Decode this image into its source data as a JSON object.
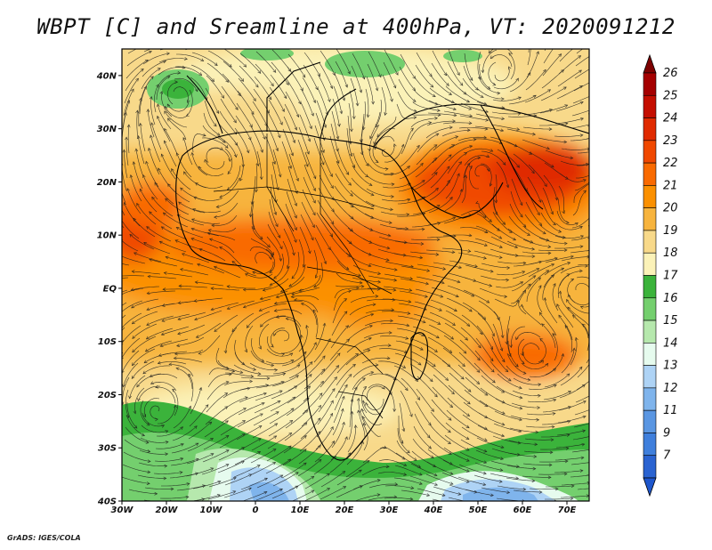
{
  "title": "WBPT [C] and Sreamline at 400hPa, VT: 2020091212",
  "credit": "GrADS: IGES/COLA",
  "map": {
    "lon_range": [
      -30,
      75
    ],
    "lat_range": [
      -40,
      45
    ],
    "lat_ticks": [
      {
        "value": 40,
        "label": "40N"
      },
      {
        "value": 30,
        "label": "30N"
      },
      {
        "value": 20,
        "label": "20N"
      },
      {
        "value": 10,
        "label": "10N"
      },
      {
        "value": 0,
        "label": "EQ"
      },
      {
        "value": -10,
        "label": "10S"
      },
      {
        "value": -20,
        "label": "20S"
      },
      {
        "value": -30,
        "label": "30S"
      },
      {
        "value": -40,
        "label": "40S"
      }
    ],
    "lon_ticks": [
      {
        "value": -30,
        "label": "30W"
      },
      {
        "value": -20,
        "label": "20W"
      },
      {
        "value": -10,
        "label": "10W"
      },
      {
        "value": 0,
        "label": "0"
      },
      {
        "value": 10,
        "label": "10E"
      },
      {
        "value": 20,
        "label": "20E"
      },
      {
        "value": 30,
        "label": "30E"
      },
      {
        "value": 40,
        "label": "40E"
      },
      {
        "value": 50,
        "label": "50E"
      },
      {
        "value": 60,
        "label": "60E"
      },
      {
        "value": 70,
        "label": "70E"
      }
    ]
  },
  "colorbar": {
    "levels": [
      {
        "label": "26",
        "color": "#a50000"
      },
      {
        "label": "25",
        "color": "#c40e00"
      },
      {
        "label": "24",
        "color": "#e02a00"
      },
      {
        "label": "23",
        "color": "#f04800"
      },
      {
        "label": "22",
        "color": "#f96a00"
      },
      {
        "label": "21",
        "color": "#fb9000"
      },
      {
        "label": "20",
        "color": "#f7b43e"
      },
      {
        "label": "19",
        "color": "#f8d98a"
      },
      {
        "label": "18",
        "color": "#fbf2b8"
      },
      {
        "label": "17",
        "color": "#3bb33b"
      },
      {
        "label": "16",
        "color": "#74cf6e"
      },
      {
        "label": "15",
        "color": "#b6e8ad"
      },
      {
        "label": "14",
        "color": "#e6fbee"
      },
      {
        "label": "13",
        "color": "#aed3f5"
      },
      {
        "label": "12",
        "color": "#7fb4ec"
      },
      {
        "label": "11",
        "color": "#5a96e2"
      },
      {
        "label": "9",
        "color": "#3f7fdc"
      },
      {
        "label": "7",
        "color": "#2a63d1"
      }
    ],
    "top_color": "#7d0000",
    "bottom_color": "#1e56cc"
  }
}
